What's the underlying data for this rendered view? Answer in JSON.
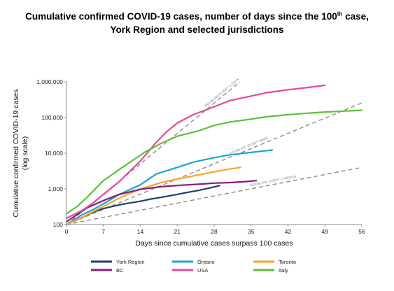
{
  "title": {
    "line1_prefix": "Cumulative confirmed COVID-19 cases, number of days since the 100",
    "line1_sup": "th",
    "line1_suffix": " case,",
    "line2": "York Region and selected jurisdictions"
  },
  "chart_data": {
    "type": "line",
    "xlabel": "Days since cumulative cases surpass 100 cases",
    "ylabel_line1": "Cumulative confirmed COVID-19 cases",
    "ylabel_line2": "(log scale)",
    "xlim": [
      0,
      56
    ],
    "ylim": [
      100,
      1000000
    ],
    "y_scale": "log",
    "x_ticks": [
      0,
      7,
      14,
      21,
      28,
      35,
      42,
      49,
      56
    ],
    "x_tick_labels": [
      "0",
      "7",
      "14",
      "21",
      "28",
      "35",
      "42",
      "49",
      "56"
    ],
    "y_ticks": [
      100,
      1000,
      10000,
      100000,
      1000000
    ],
    "y_tick_labels": [
      "100",
      "1,000",
      "10,000",
      "100,000",
      "1,000,000"
    ],
    "grid": false,
    "legend_position": "bottom",
    "doubling_guides": [
      {
        "label": "DOUBLING EVERY 2 DAYS",
        "x": [
          0,
          32.9
        ],
        "y": [
          100,
          1000000
        ]
      },
      {
        "label": "DOUBLING EVERY WEEK",
        "x": [
          0,
          56
        ],
        "y": [
          100,
          256000
        ]
      },
      {
        "label": "DOUBLING EVERY 2 WEEKS",
        "x": [
          0,
          56
        ],
        "y": [
          100,
          4000
        ]
      }
    ],
    "series": [
      {
        "name": "York Region",
        "color": "#1f3f73",
        "x": [
          0,
          3,
          5,
          7,
          9,
          11,
          14,
          16,
          18,
          21,
          23,
          25,
          27,
          29
        ],
        "y": [
          100,
          160,
          220,
          280,
          330,
          380,
          450,
          520,
          580,
          700,
          800,
          900,
          1050,
          1230
        ]
      },
      {
        "name": "Ontario",
        "color": "#1aa7c9",
        "x": [
          0,
          3,
          5,
          7,
          10,
          14,
          17,
          21,
          24,
          28,
          31,
          35,
          38,
          39
        ],
        "y": [
          100,
          190,
          260,
          380,
          700,
          1300,
          2600,
          4000,
          5600,
          7500,
          9000,
          10500,
          11800,
          12300
        ]
      },
      {
        "name": "Toronto",
        "color": "#f5a623",
        "x": [
          0,
          3,
          5,
          7,
          10,
          14,
          18,
          21,
          24,
          28,
          31,
          33
        ],
        "y": [
          100,
          160,
          230,
          320,
          550,
          1000,
          1500,
          1900,
          2300,
          3000,
          3600,
          4000
        ]
      },
      {
        "name": "BC",
        "color": "#8a1a7e",
        "x": [
          0,
          2,
          4,
          7,
          10,
          14,
          18,
          21,
          25,
          28,
          31,
          34,
          36
        ],
        "y": [
          120,
          190,
          300,
          470,
          700,
          970,
          1150,
          1250,
          1350,
          1450,
          1500,
          1600,
          1700
        ]
      },
      {
        "name": "USA",
        "color": "#e8479a",
        "x": [
          0,
          3,
          5,
          7,
          10,
          14,
          17,
          19,
          21,
          24,
          28,
          31,
          35,
          38,
          42,
          46,
          49
        ],
        "y": [
          150,
          250,
          400,
          700,
          1600,
          6000,
          20000,
          40000,
          70000,
          120000,
          200000,
          300000,
          400000,
          500000,
          600000,
          700000,
          800000
        ]
      },
      {
        "name": "Italy",
        "color": "#5bc236",
        "x": [
          0,
          2,
          4,
          7,
          10,
          13,
          15,
          18,
          21,
          25,
          28,
          31,
          35,
          38,
          42,
          45,
          49,
          53,
          56
        ],
        "y": [
          200,
          320,
          600,
          1700,
          3500,
          7000,
          11000,
          19000,
          30000,
          42000,
          60000,
          75000,
          90000,
          105000,
          120000,
          130000,
          143000,
          152000,
          160000
        ]
      }
    ]
  }
}
